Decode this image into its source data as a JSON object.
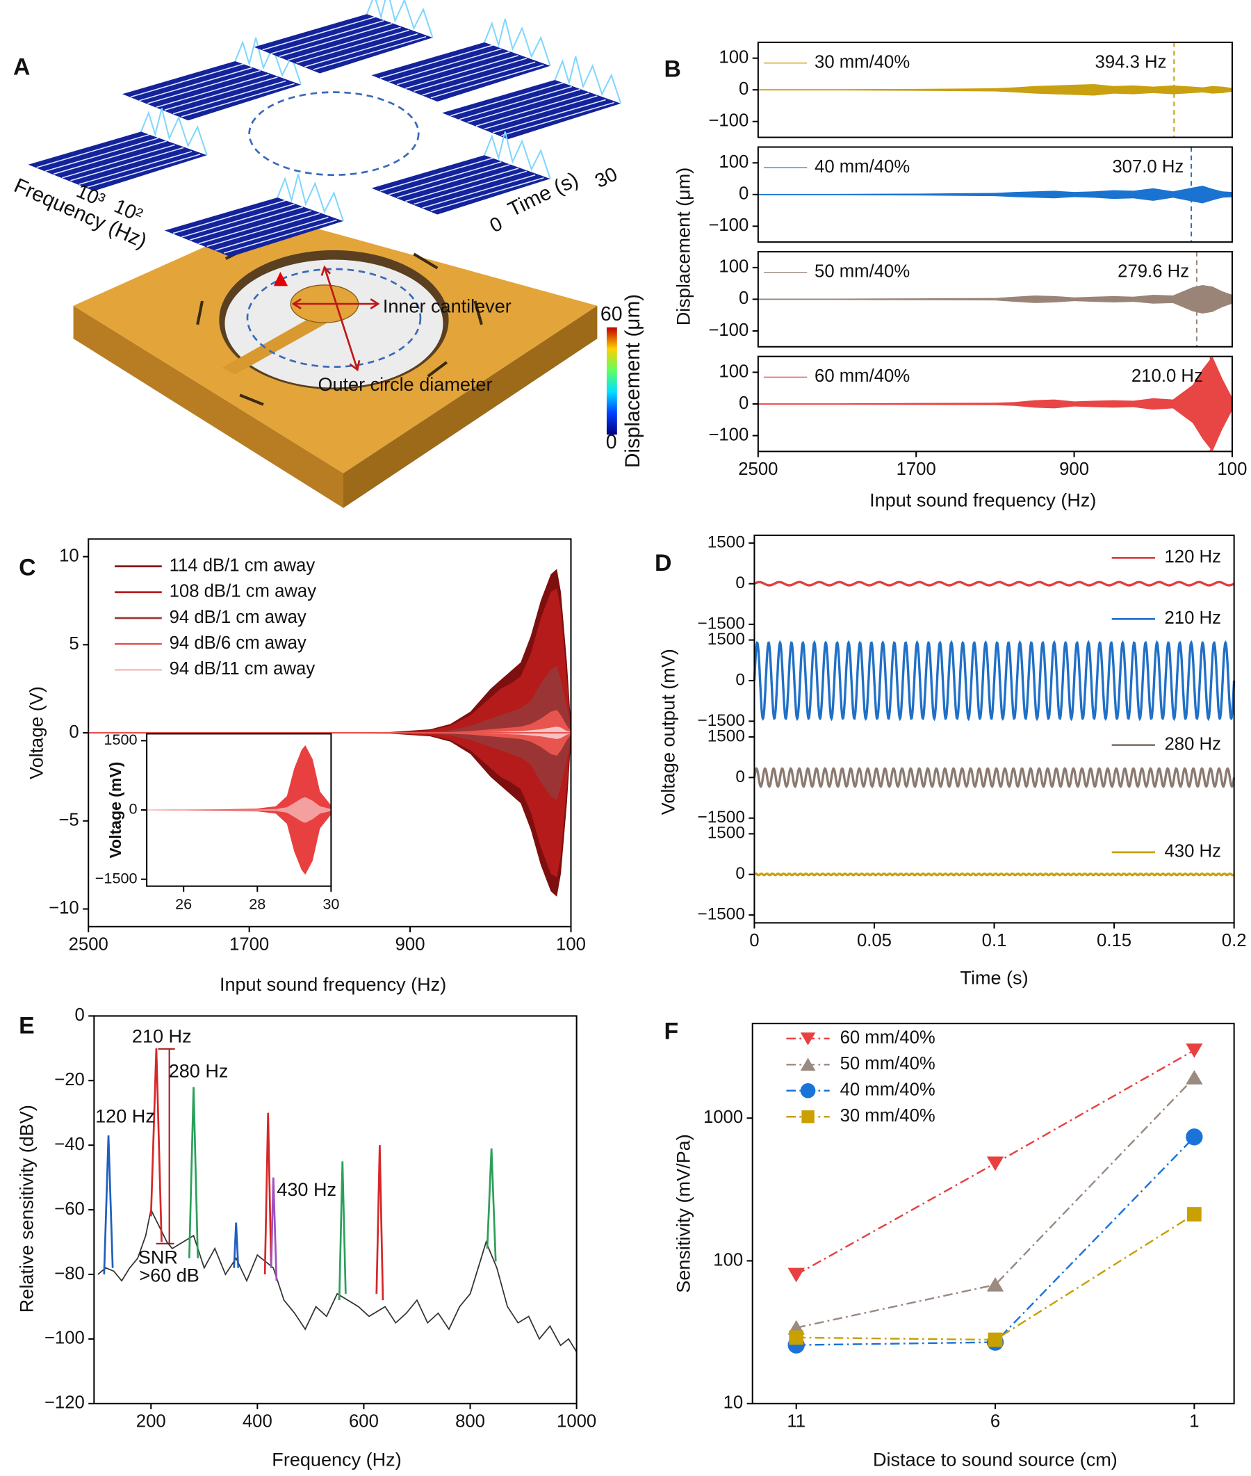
{
  "illustration": {
    "panel": "A",
    "frequency_label": "Frequency (Hz)",
    "freq_ticks": [
      "10³",
      "10²"
    ],
    "time_label": "Time (s)",
    "time_ticks": [
      "0",
      "30"
    ],
    "inner_label": "Inner cantilever",
    "outer_label": "Outer circle diameter",
    "colorbar": {
      "label": "Displacement (μm)",
      "lim": [
        0,
        60
      ],
      "ticks": [
        0,
        60
      ]
    }
  },
  "chart_data": [
    {
      "type": "area",
      "panel": "B",
      "ylabel": "Displacement (μm)",
      "xlabel": "Input sound frequency (Hz)",
      "xlim": [
        2500,
        100
      ],
      "xticks": [
        2500,
        1700,
        900,
        100
      ],
      "ylim": [
        -150,
        150
      ],
      "yticks": [
        {
          "value": -100,
          "label": "−100"
        },
        0,
        100
      ],
      "x": [
        2500,
        2100,
        1700,
        1300,
        1200,
        1100,
        1000,
        900,
        800,
        700,
        600,
        500,
        400,
        300,
        250,
        200,
        150,
        100
      ],
      "series": [
        {
          "name": "30 mm/40%",
          "color": "#c9a010",
          "values": [
            2,
            2,
            3,
            5,
            8,
            12,
            14,
            16,
            18,
            12,
            14,
            10,
            14,
            10,
            8,
            12,
            10,
            6
          ],
          "marker": {
            "value": 394.3,
            "label": "394.3 Hz"
          }
        },
        {
          "name": "40 mm/40%",
          "color": "#1a73d0",
          "values": [
            2,
            2,
            3,
            5,
            8,
            10,
            12,
            8,
            10,
            14,
            12,
            20,
            10,
            22,
            28,
            18,
            10,
            8
          ],
          "marker": {
            "value": 307.0,
            "label": "307.0 Hz"
          }
        },
        {
          "name": "50 mm/40%",
          "color": "#9a8478",
          "values": [
            2,
            2,
            3,
            4,
            8,
            12,
            10,
            6,
            8,
            10,
            8,
            14,
            12,
            38,
            45,
            40,
            25,
            14
          ],
          "marker": {
            "value": 279.6,
            "label": "279.6 Hz"
          }
        },
        {
          "name": "60 mm/40%",
          "color": "#e84545",
          "values": [
            2,
            2,
            3,
            4,
            6,
            12,
            14,
            8,
            10,
            12,
            10,
            18,
            14,
            60,
            110,
            150,
            80,
            20
          ],
          "marker": {
            "value": 210.0,
            "label": "210.0 Hz"
          }
        }
      ]
    },
    {
      "type": "area",
      "panel": "C",
      "ylabel": "Voltage (V)",
      "xlabel": "Input sound frequency (Hz)",
      "xlim": [
        2500,
        100
      ],
      "xticks": [
        2500,
        1700,
        900,
        100
      ],
      "ylim": [
        -11,
        11
      ],
      "yticks": [
        {
          "value": -10,
          "label": "−10"
        },
        {
          "value": -5,
          "label": "−5"
        },
        0,
        5,
        10
      ],
      "x": [
        2500,
        1500,
        1000,
        800,
        700,
        600,
        500,
        450,
        400,
        350,
        300,
        250,
        200,
        170,
        150,
        120,
        100
      ],
      "series": [
        {
          "name": "114 dB/1 cm away",
          "color": "#7d0f0f",
          "values": [
            0.01,
            0.02,
            0.05,
            0.2,
            0.5,
            1.2,
            2.5,
            3,
            3.5,
            4,
            5.5,
            7.5,
            9,
            9.3,
            8,
            4,
            0.5
          ]
        },
        {
          "name": "108 dB/1 cm away",
          "color": "#b51b1b",
          "values": [
            0.01,
            0.02,
            0.04,
            0.15,
            0.4,
            1,
            2,
            2.5,
            2.8,
            3.2,
            4.5,
            6.5,
            8,
            8.2,
            7,
            3,
            0.4
          ]
        },
        {
          "name": "94 dB/1 cm away",
          "color": "#9b3535",
          "values": [
            0.01,
            0.01,
            0.02,
            0.05,
            0.15,
            0.4,
            0.8,
            1,
            1.2,
            1.4,
            1.8,
            2.8,
            3.6,
            3.8,
            3,
            1.5,
            0.2
          ]
        },
        {
          "name": "94 dB/6 cm away",
          "color": "#e8554f",
          "values": [
            0,
            0.01,
            0.01,
            0.02,
            0.05,
            0.1,
            0.2,
            0.25,
            0.3,
            0.35,
            0.5,
            0.8,
            1.2,
            1.3,
            1,
            0.4,
            0.1
          ]
        },
        {
          "name": "94 dB/11 cm away",
          "color": "#f5c4c4",
          "values": [
            0,
            0,
            0.01,
            0.01,
            0.02,
            0.03,
            0.05,
            0.06,
            0.08,
            0.1,
            0.15,
            0.2,
            0.3,
            0.35,
            0.3,
            0.1,
            0.05
          ]
        }
      ]
    },
    {
      "type": "area",
      "ylabel": "Voltage (mV)",
      "xlim": [
        25,
        30
      ],
      "xticks": [
        26,
        28,
        30
      ],
      "ylim": [
        -1650,
        1650
      ],
      "yticks": [
        {
          "value": -1500,
          "label": "−1500"
        },
        0,
        1500
      ],
      "x": [
        25,
        26,
        27,
        28,
        28.5,
        28.8,
        29,
        29.2,
        29.3,
        29.5,
        29.7,
        30
      ],
      "series": [
        {
          "color": "#e84040",
          "values": [
            5,
            8,
            15,
            30,
            80,
            300,
            900,
            1300,
            1400,
            1100,
            400,
            100
          ]
        },
        {
          "color": "#f5a0a0",
          "values": [
            2,
            3,
            5,
            10,
            20,
            60,
            150,
            250,
            280,
            200,
            80,
            20
          ]
        }
      ]
    },
    {
      "type": "sine",
      "panel": "D",
      "ylabel": "Voltage output (mV)",
      "xlabel": "Time (s)",
      "xlim": [
        0,
        0.2
      ],
      "xticks": [
        0,
        0.05,
        0.1,
        0.15,
        0.2
      ],
      "ylim": [
        -1790,
        1790
      ],
      "yticks": [
        {
          "value": -1500,
          "label": "−1500"
        },
        0,
        1500
      ],
      "series": [
        {
          "name": "120 Hz",
          "color": "#e04040",
          "amplitude": 60,
          "frequency": 120
        },
        {
          "name": "210 Hz",
          "color": "#2070c8",
          "amplitude": 1400,
          "frequency": 210
        },
        {
          "name": "280 Hz",
          "color": "#8a7a70",
          "amplitude": 330,
          "frequency": 280
        },
        {
          "name": "430 Hz",
          "color": "#c9a010",
          "amplitude": 25,
          "frequency": 430
        }
      ]
    },
    {
      "type": "line",
      "panel": "E",
      "ylabel": "Relative sensitivity (dBV)",
      "xlabel": "Frequency (Hz)",
      "xlim": [
        93,
        1000
      ],
      "xticks": [
        200,
        400,
        600,
        800,
        1000
      ],
      "ylim": [
        -120,
        0
      ],
      "yticks": [
        {
          "value": -120,
          "label": "−120"
        },
        {
          "value": -100,
          "label": "−100"
        },
        {
          "value": -80,
          "label": "−80"
        },
        {
          "value": -60,
          "label": "−60"
        },
        {
          "value": -40,
          "label": "−40"
        },
        {
          "value": -20,
          "label": "−20"
        },
        0
      ],
      "annotations": [
        {
          "text": "120 Hz",
          "color": "#1f5fbf"
        },
        {
          "text": "210 Hz",
          "color": "#d62728"
        },
        {
          "text": "280 Hz",
          "color": "#2ca05a"
        },
        {
          "text": "430 Hz",
          "color": "#a050c0"
        },
        {
          "text": "SNR",
          "color": "#a01818"
        },
        {
          "text": ">60 dB",
          "color": "#a01818"
        }
      ],
      "series": [
        {
          "color": "#333333",
          "x": [
            100,
            115,
            130,
            145,
            160,
            175,
            190,
            200,
            230,
            240,
            260,
            280,
            300,
            320,
            340,
            360,
            380,
            400,
            430,
            450,
            470,
            490,
            510,
            530,
            550,
            570,
            590,
            610,
            640,
            660,
            680,
            700,
            720,
            740,
            760,
            780,
            800,
            815,
            830,
            850,
            870,
            890,
            910,
            930,
            950,
            970,
            985,
            1000
          ],
          "values": [
            -80,
            -78,
            -79,
            -82,
            -78,
            -75,
            -68,
            -60,
            -70,
            -72,
            -70,
            -68,
            -78,
            -72,
            -80,
            -75,
            -82,
            -74,
            -78,
            -88,
            -92,
            -97,
            -90,
            -93,
            -86,
            -88,
            -90,
            -93,
            -90,
            -95,
            -92,
            -88,
            -95,
            -92,
            -97,
            -90,
            -86,
            -78,
            -70,
            -78,
            -90,
            -95,
            -93,
            -100,
            -96,
            -102,
            -100,
            -104
          ]
        },
        {
          "color": "#1f5fbf",
          "x": [
            112,
            120,
            128
          ],
          "values": [
            -80,
            -37,
            -78
          ]
        },
        {
          "color": "#d62728",
          "x": [
            200,
            210,
            220
          ],
          "values": [
            -62,
            -10,
            -70
          ]
        },
        {
          "color": "#2ca05a",
          "x": [
            272,
            280,
            288
          ],
          "values": [
            -75,
            -22,
            -75
          ]
        },
        {
          "color": "#1f5fbf",
          "x": [
            356,
            360,
            364
          ],
          "values": [
            -78,
            -64,
            -78
          ]
        },
        {
          "color": "#d62728",
          "x": [
            414,
            420,
            426
          ],
          "values": [
            -80,
            -30,
            -78
          ]
        },
        {
          "color": "#a050c0",
          "x": [
            426,
            430,
            436
          ],
          "values": [
            -78,
            -50,
            -82
          ]
        },
        {
          "color": "#2ca05a",
          "x": [
            554,
            560,
            566
          ],
          "values": [
            -88,
            -45,
            -86
          ]
        },
        {
          "color": "#d62728",
          "x": [
            624,
            630,
            636
          ],
          "values": [
            -86,
            -40,
            -88
          ]
        },
        {
          "color": "#2ca05a",
          "x": [
            832,
            840,
            848
          ],
          "values": [
            -72,
            -41,
            -76
          ]
        }
      ]
    },
    {
      "type": "line",
      "panel": "F",
      "ylabel": "Sensitivity (mV/Pa)",
      "xlabel": "Distace to sound source (cm)",
      "log": true,
      "linestyle": "dash-dot",
      "xlim": [
        12.1,
        0
      ],
      "xticks": [
        11,
        6,
        1
      ],
      "ylim": [
        10,
        4600
      ],
      "yticks": [
        10,
        100,
        1000
      ],
      "x": [
        11,
        6,
        1
      ],
      "series": [
        {
          "name": "60 mm/40%",
          "color": "#e84040",
          "marker": "triangle-down",
          "values": [
            80,
            482,
            2990
          ]
        },
        {
          "name": "50 mm/40%",
          "color": "#9a8a80",
          "marker": "triangle-up",
          "values": [
            34,
            68,
            1920
          ]
        },
        {
          "name": "40 mm/40%",
          "color": "#1a73d9",
          "marker": "circle",
          "values": [
            25.7,
            26.9,
            738
          ]
        },
        {
          "name": "30 mm/40%",
          "color": "#c8a000",
          "marker": "square",
          "values": [
            29,
            28,
            212
          ]
        }
      ]
    }
  ]
}
